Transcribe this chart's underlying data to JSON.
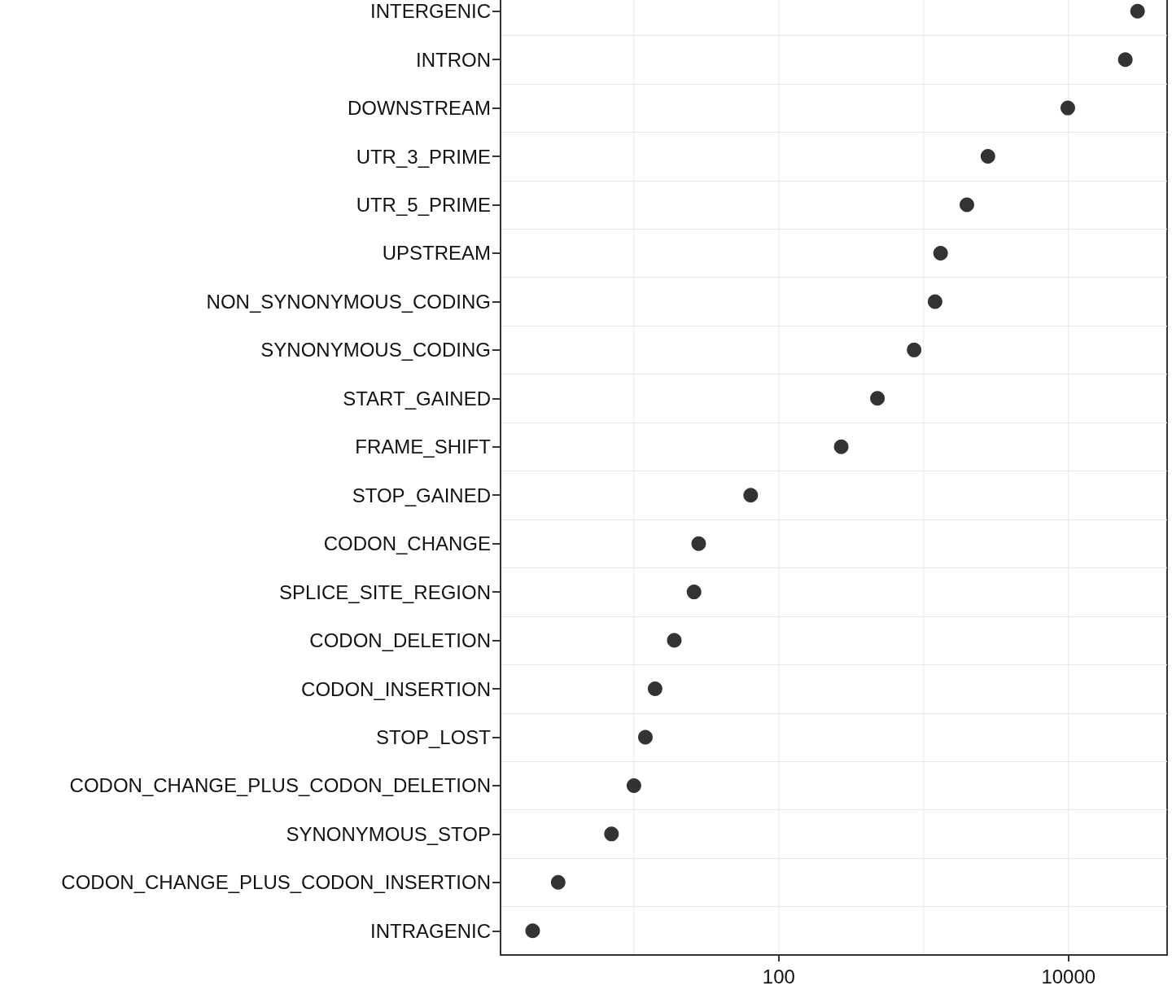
{
  "chart_data": {
    "type": "scatter",
    "categories": [
      "INTERGENIC",
      "INTRON",
      "DOWNSTREAM",
      "UTR_3_PRIME",
      "UTR_5_PRIME",
      "UPSTREAM",
      "NON_SYNONYMOUS_CODING",
      "SYNONYMOUS_CODING",
      "START_GAINED",
      "FRAME_SHIFT",
      "STOP_GAINED",
      "CODON_CHANGE",
      "SPLICE_SITE_REGION",
      "CODON_DELETION",
      "CODON_INSERTION",
      "STOP_LOST",
      "CODON_CHANGE_PLUS_CODON_DELETION",
      "SYNONYMOUS_STOP",
      "CODON_CHANGE_PLUS_CODON_INSERTION",
      "INTRAGENIC"
    ],
    "series": [
      {
        "color": "#000000",
        "values": [
          30000,
          24700,
          9900,
          2780,
          1990,
          1310,
          1200,
          860,
          480,
          270,
          64,
          28,
          26,
          19,
          14,
          12,
          10,
          7,
          3,
          2
        ]
      }
    ],
    "orientation": "horizontal",
    "log": "x",
    "xlim": [
      1.2,
      48000
    ],
    "xticks": [
      {
        "value": 10,
        "label": null
      },
      100,
      {
        "value": 1000,
        "label": null
      },
      10000
    ],
    "grid": true,
    "marker": "circle"
  }
}
